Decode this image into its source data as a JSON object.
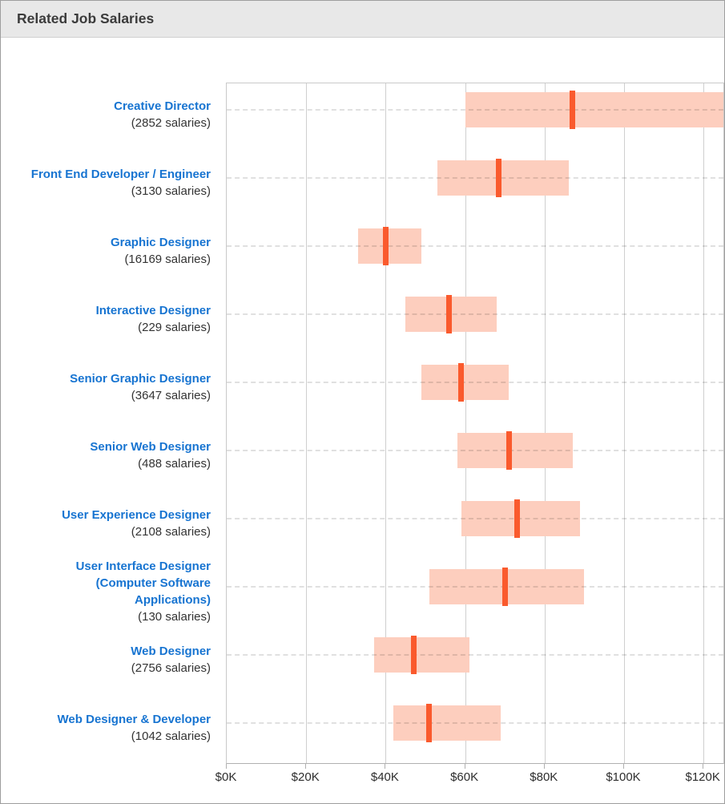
{
  "header": {
    "title": "Related Job Salaries"
  },
  "colors": {
    "panel_border": "#9e9e9e",
    "header_bg": "#e8e8e8",
    "header_text": "#3b3b3b",
    "job_title": "#1774d1",
    "salary_count": "#333333",
    "bar_fill": "#fdcebe",
    "median_tick": "#fa5a2d",
    "gridline": "#cfcfcf",
    "plot_border": "#c9c9c9",
    "axis_line": "#b0b0b0",
    "axis_label": "#2d2d2d",
    "row_dash": "rgba(0,0,0,0.12)"
  },
  "chart_data": {
    "type": "bar",
    "subtype": "horizontal-salary-range",
    "title": "Related Job Salaries",
    "unit": "USD thousands per year",
    "x_min": 0,
    "x_axis_end": 125,
    "x_tick_values": [
      0,
      20,
      40,
      60,
      80,
      100,
      120
    ],
    "x_ticks": [
      "$0K",
      "$20K",
      "$40K",
      "$60K",
      "$80K",
      "$100K",
      "$120K"
    ],
    "grid": "vertical gridlines every $20K; dashed horizontal guide per row",
    "legend": "none",
    "jobs": [
      {
        "title": "Creative Director",
        "count_label": "(2852 salaries)",
        "min": 60,
        "median": 87,
        "max": 125,
        "max_clipped": true
      },
      {
        "title": "Front End Developer / Engineer",
        "count_label": "(3130 salaries)",
        "min": 53,
        "median": 68.5,
        "max": 86
      },
      {
        "title": "Graphic Designer",
        "count_label": "(16169 salaries)",
        "min": 33,
        "median": 40,
        "max": 49
      },
      {
        "title": "Interactive Designer",
        "count_label": "(229 salaries)",
        "min": 45,
        "median": 56,
        "max": 68
      },
      {
        "title": "Senior Graphic Designer",
        "count_label": "(3647 salaries)",
        "min": 49,
        "median": 59,
        "max": 71
      },
      {
        "title": "Senior Web Designer",
        "count_label": "(488 salaries)",
        "min": 58,
        "median": 71,
        "max": 87
      },
      {
        "title": "User Experience Designer",
        "count_label": "(2108 salaries)",
        "min": 59,
        "median": 73,
        "max": 89
      },
      {
        "title": "User Interface Designer (Computer Software Applications)",
        "count_label": "(130 salaries)",
        "min": 51,
        "median": 70,
        "max": 90
      },
      {
        "title": "Web Designer",
        "count_label": "(2756 salaries)",
        "min": 37,
        "median": 47,
        "max": 61
      },
      {
        "title": "Web Designer & Developer",
        "count_label": "(1042 salaries)",
        "min": 42,
        "median": 51,
        "max": 69
      }
    ]
  }
}
